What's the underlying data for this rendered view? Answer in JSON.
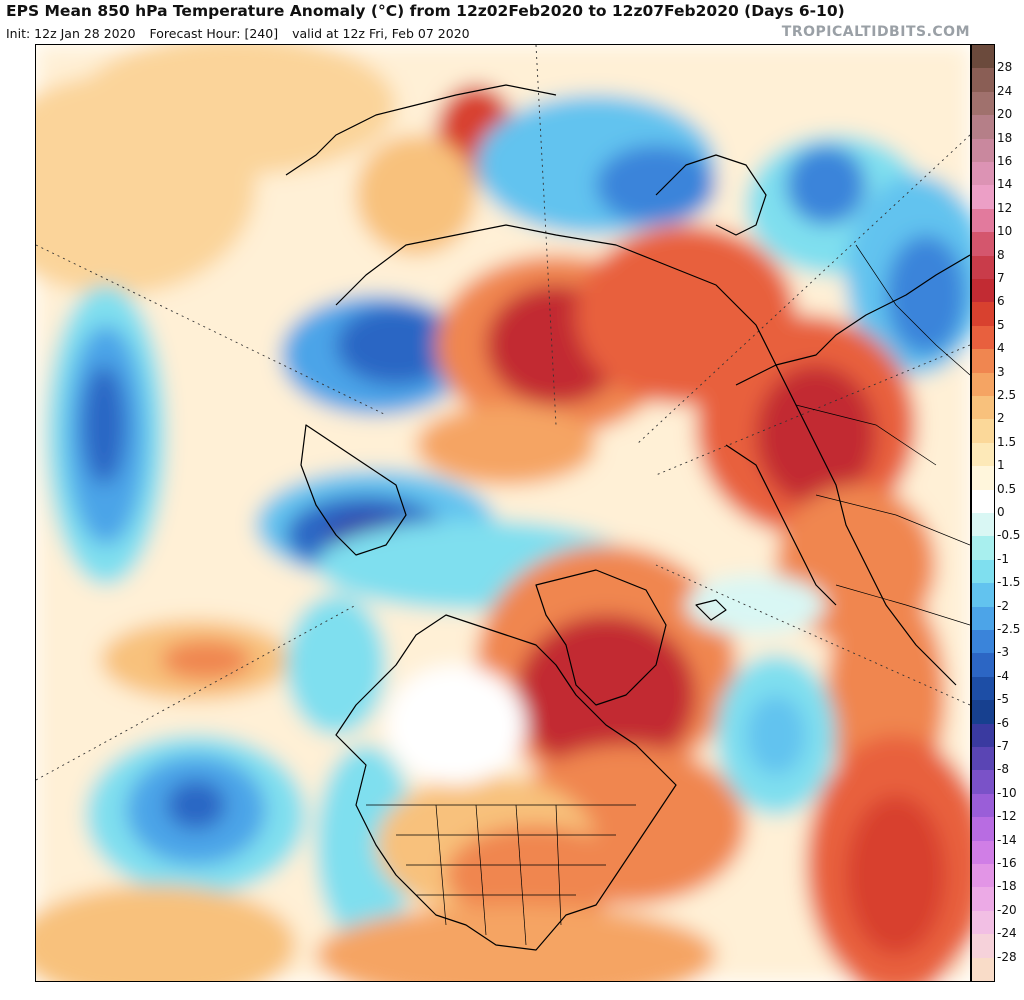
{
  "header": {
    "title": "EPS Mean 850 hPa Temperature Anomaly (°C) from 12z02Feb2020 to 12z07Feb2020 (Days 6-10)",
    "init": "Init: 12z Jan 28 2020",
    "forecast_hour": "Forecast Hour: [240]",
    "valid": "valid at 12z Fri, Feb 07 2020",
    "credit": "TROPICALTIDBITS.COM"
  },
  "map": {
    "projection": "north polar stereographic",
    "variable": "850 hPa temperature anomaly",
    "units": "°C",
    "features": [
      "anomaly-fill",
      "coastlines",
      "country-borders",
      "us-state-borders",
      "latitude-longitude-grid"
    ]
  },
  "colorbar": {
    "levels": [
      {
        "label": "28",
        "color": "#6b4a3c"
      },
      {
        "label": "24",
        "color": "#8a5e55"
      },
      {
        "label": "20",
        "color": "#a0716d"
      },
      {
        "label": "18",
        "color": "#b57f88"
      },
      {
        "label": "16",
        "color": "#c9889e"
      },
      {
        "label": "14",
        "color": "#dc93b4"
      },
      {
        "label": "12",
        "color": "#ec9fc6"
      },
      {
        "label": "10",
        "color": "#e27a9d"
      },
      {
        "label": "8",
        "color": "#d4566d"
      },
      {
        "label": "7",
        "color": "#c93c4a"
      },
      {
        "label": "6",
        "color": "#c22b33"
      },
      {
        "label": "5",
        "color": "#d8412f"
      },
      {
        "label": "4",
        "color": "#e8603e"
      },
      {
        "label": "3",
        "color": "#f08650"
      },
      {
        "label": "2.5",
        "color": "#f5a463"
      },
      {
        "label": "2",
        "color": "#f8c17c"
      },
      {
        "label": "1.5",
        "color": "#fbd899"
      },
      {
        "label": "1",
        "color": "#fde9b8"
      },
      {
        "label": "0.5",
        "color": "#fff6dc"
      },
      {
        "label": "0",
        "color": "#ffffff"
      },
      {
        "label": "-0.5",
        "color": "#d9f7f4"
      },
      {
        "label": "-1",
        "color": "#a8efee"
      },
      {
        "label": "-1.5",
        "color": "#7fdfef"
      },
      {
        "label": "-2",
        "color": "#62c3ef"
      },
      {
        "label": "-2.5",
        "color": "#4ca4e8"
      },
      {
        "label": "-3",
        "color": "#3a84da"
      },
      {
        "label": "-4",
        "color": "#2c66c4"
      },
      {
        "label": "-5",
        "color": "#1d4ea6"
      },
      {
        "label": "-6",
        "color": "#17408f"
      },
      {
        "label": "-7",
        "color": "#3a3aa0"
      },
      {
        "label": "-8",
        "color": "#5a45b4"
      },
      {
        "label": "-10",
        "color": "#7a52c8"
      },
      {
        "label": "-12",
        "color": "#9a5ed8"
      },
      {
        "label": "-14",
        "color": "#b86ce2"
      },
      {
        "label": "-16",
        "color": "#d07ee6"
      },
      {
        "label": "-18",
        "color": "#e295e6"
      },
      {
        "label": "-20",
        "color": "#ecaae6"
      },
      {
        "label": "-24",
        "color": "#f2bfe4"
      },
      {
        "label": "-28",
        "color": "#f6d2da"
      }
    ],
    "bottom_color": "#f9dcc8"
  }
}
